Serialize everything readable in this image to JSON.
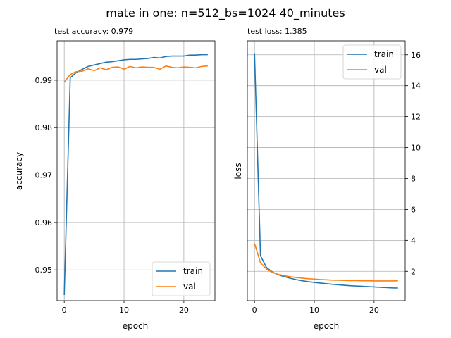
{
  "figure": {
    "suptitle": "mate in one: n=512_bs=1024 40_minutes"
  },
  "colors": {
    "train": "#1f77b4",
    "val": "#ff7f0e",
    "grid": "#b0b0b0"
  },
  "chart_data": [
    {
      "type": "line",
      "title": "test accuracy: 0.979",
      "xlabel": "epoch",
      "ylabel": "accuracy",
      "xlim": [
        -1.2,
        25.2
      ],
      "ylim": [
        0.9435,
        0.9983
      ],
      "xticks": [
        0,
        10,
        20
      ],
      "yticks": [
        0.95,
        0.96,
        0.97,
        0.98,
        0.99
      ],
      "ytick_labels": [
        "0.95",
        "0.96",
        "0.97",
        "0.98",
        "0.99"
      ],
      "y_axis_side": "left",
      "grid": true,
      "legend": "lower right",
      "x": [
        0,
        1,
        2,
        3,
        4,
        5,
        6,
        7,
        8,
        9,
        10,
        11,
        12,
        13,
        14,
        15,
        16,
        17,
        18,
        19,
        20,
        21,
        22,
        23,
        24
      ],
      "series": [
        {
          "name": "train",
          "color_key": "train",
          "values": [
            0.9447,
            0.9905,
            0.9916,
            0.9923,
            0.9929,
            0.9932,
            0.9935,
            0.9938,
            0.9939,
            0.9941,
            0.9943,
            0.9944,
            0.9944,
            0.9945,
            0.9946,
            0.9948,
            0.9947,
            0.995,
            0.9951,
            0.9951,
            0.9951,
            0.9953,
            0.9953,
            0.9954,
            0.9954
          ]
        },
        {
          "name": "val",
          "color_key": "val",
          "values": [
            0.9896,
            0.9912,
            0.9918,
            0.9919,
            0.9924,
            0.992,
            0.9926,
            0.9922,
            0.9927,
            0.9928,
            0.9923,
            0.9929,
            0.9926,
            0.9928,
            0.9927,
            0.9927,
            0.9923,
            0.993,
            0.9927,
            0.9926,
            0.9928,
            0.9927,
            0.9926,
            0.9929,
            0.993
          ]
        }
      ]
    },
    {
      "type": "line",
      "title": "test loss: 1.385",
      "xlabel": "epoch",
      "ylabel": "loss",
      "xlim": [
        -1.2,
        25.2
      ],
      "ylim": [
        0.1,
        16.9
      ],
      "xticks": [
        0,
        10,
        20
      ],
      "yticks": [
        2,
        4,
        6,
        8,
        10,
        12,
        14,
        16
      ],
      "ytick_labels": [
        "2",
        "4",
        "6",
        "8",
        "10",
        "12",
        "14",
        "16"
      ],
      "y_axis_side": "right",
      "grid": true,
      "legend": "upper right",
      "x": [
        0,
        1,
        2,
        3,
        4,
        5,
        6,
        7,
        8,
        9,
        10,
        11,
        12,
        13,
        14,
        15,
        16,
        17,
        18,
        19,
        20,
        21,
        22,
        23,
        24
      ],
      "series": [
        {
          "name": "train",
          "color_key": "train",
          "values": [
            16.1,
            3.0,
            2.25,
            1.95,
            1.78,
            1.65,
            1.55,
            1.46,
            1.39,
            1.33,
            1.28,
            1.24,
            1.2,
            1.16,
            1.13,
            1.1,
            1.07,
            1.05,
            1.03,
            1.01,
            0.99,
            0.97,
            0.95,
            0.93,
            0.92
          ]
        },
        {
          "name": "val",
          "color_key": "val",
          "values": [
            3.8,
            2.55,
            2.15,
            1.92,
            1.8,
            1.72,
            1.65,
            1.6,
            1.56,
            1.52,
            1.5,
            1.47,
            1.45,
            1.43,
            1.42,
            1.41,
            1.4,
            1.4,
            1.39,
            1.39,
            1.38,
            1.38,
            1.38,
            1.38,
            1.39
          ]
        }
      ]
    }
  ]
}
